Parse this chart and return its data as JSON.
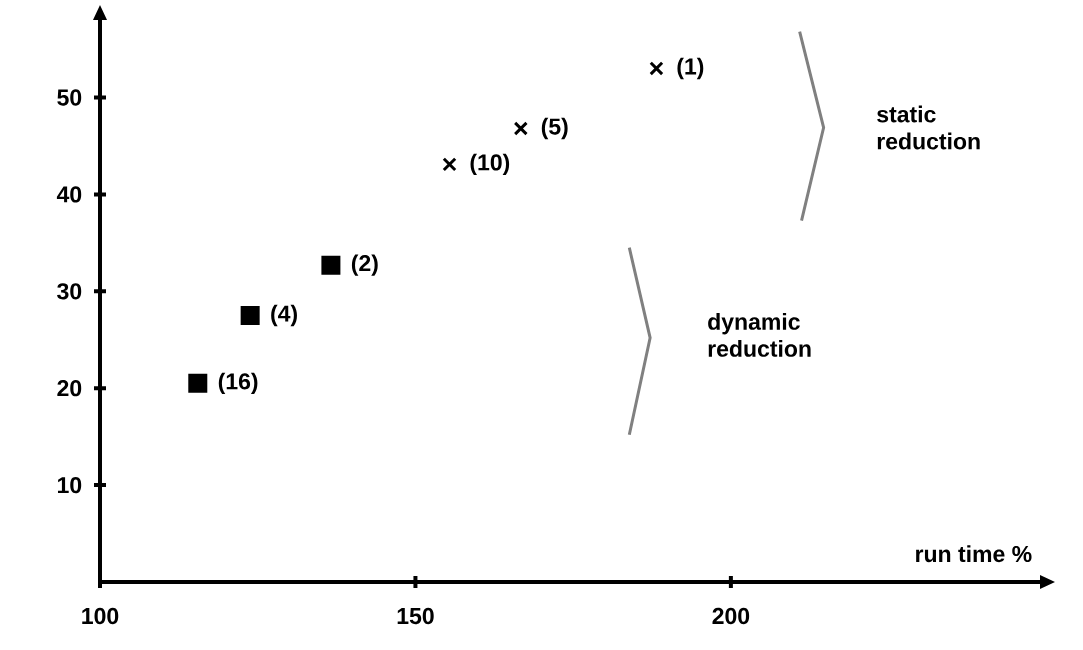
{
  "chart_data": {
    "type": "scatter",
    "xlabel": "run time %",
    "series": [
      {
        "color": "#000000",
        "marker": "cross",
        "x": [
          188.2,
          166.7,
          155.4
        ],
        "values": [
          53.0,
          46.8,
          43.1
        ]
      },
      {
        "color": "#000000",
        "marker": "square",
        "x": [
          136.6,
          123.8,
          115.5
        ],
        "values": [
          32.7,
          27.5,
          20.5
        ]
      }
    ],
    "xlim": [
      100,
      249
    ],
    "ylim": [
      0,
      58
    ],
    "xticks": [
      100,
      150,
      200
    ],
    "yticks": [
      10,
      20,
      30,
      40,
      50
    ],
    "annotations": [
      {
        "text": "(1)",
        "x": 188.2,
        "y": 53.0
      },
      {
        "text": "(5)",
        "x": 166.7,
        "y": 46.8
      },
      {
        "text": "(10)",
        "x": 155.4,
        "y": 43.1
      },
      {
        "text": "(2)",
        "x": 136.6,
        "y": 32.7
      },
      {
        "text": "(4)",
        "x": 123.8,
        "y": 27.5
      },
      {
        "text": "(16)",
        "x": 115.5,
        "y": 20.5
      },
      "static reduction",
      "dynamic reduction"
    ]
  }
}
